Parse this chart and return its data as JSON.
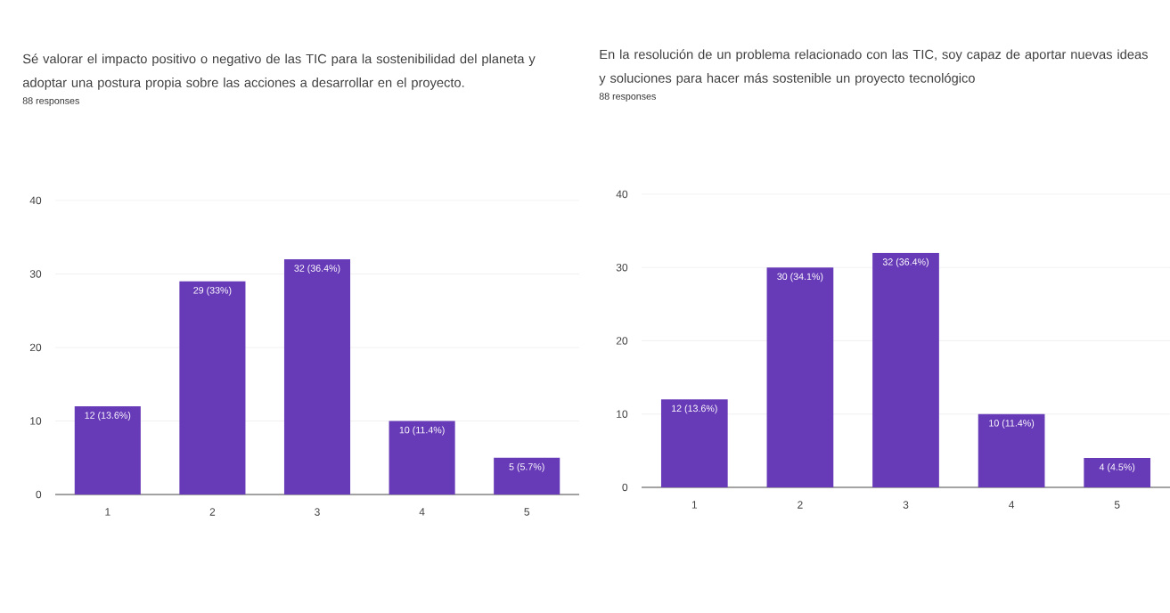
{
  "chart_data": [
    {
      "type": "bar",
      "title": "Sé valorar el impacto positivo o negativo de las TIC para la sostenibilidad del planeta y adoptar una postura propia sobre las acciones a desarrollar en el proyecto.",
      "subtitle": "88 responses",
      "categories": [
        "1",
        "2",
        "3",
        "4",
        "5"
      ],
      "values": [
        12,
        29,
        32,
        10,
        5
      ],
      "value_labels": [
        "12 (13.6%)",
        "29 (33%)",
        "32 (36.4%)",
        "10 (11.4%)",
        "5 (5.7%)"
      ],
      "color": "#673ab7",
      "ylim": [
        0,
        40
      ],
      "yticks": [
        0,
        10,
        20,
        30,
        40
      ],
      "grid": "y"
    },
    {
      "type": "bar",
      "title": "En la resolución de un problema relacionado con las TIC, soy capaz de aportar nuevas ideas y soluciones para hacer más sostenible un proyecto tecnológico",
      "subtitle": "88 responses",
      "categories": [
        "1",
        "2",
        "3",
        "4",
        "5"
      ],
      "values": [
        12,
        30,
        32,
        10,
        4
      ],
      "value_labels": [
        "12 (13.6%)",
        "30 (34.1%)",
        "32 (36.4%)",
        "10 (11.4%)",
        "4 (4.5%)"
      ],
      "color": "#673ab7",
      "ylim": [
        0,
        40
      ],
      "yticks": [
        0,
        10,
        20,
        30,
        40
      ],
      "grid": "y"
    }
  ]
}
